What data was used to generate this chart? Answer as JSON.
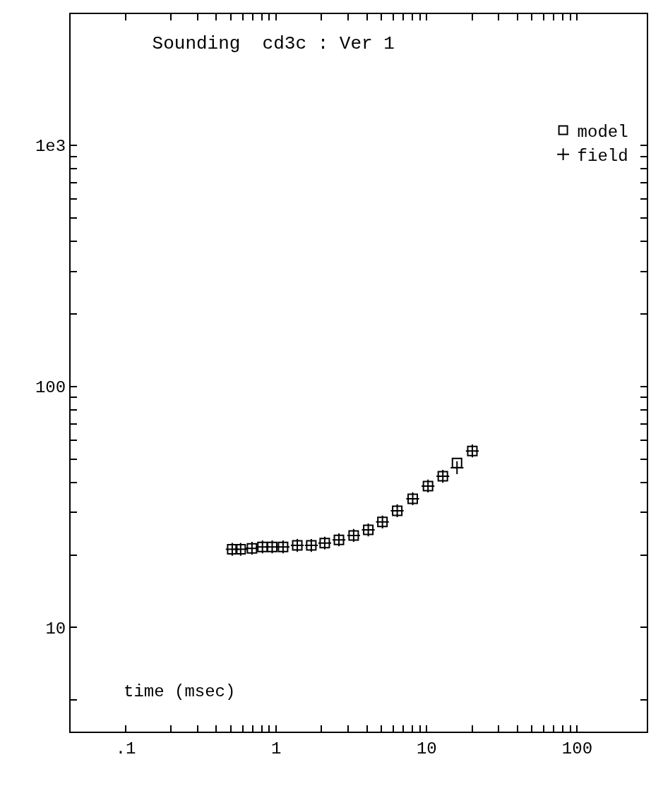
{
  "chart_data": {
    "type": "scatter",
    "title": "Sounding  cd3c : Ver 1",
    "xlabel": "time (msec)",
    "x": [
      0.51,
      0.58,
      0.69,
      0.81,
      0.94,
      1.11,
      1.38,
      1.71,
      2.1,
      2.61,
      3.27,
      4.09,
      5.08,
      6.37,
      8.07,
      10.2,
      12.8,
      15.9,
      20.1
    ],
    "series": [
      {
        "name": "model",
        "color": "#000000",
        "marker": "square",
        "values": [
          21.1,
          21.1,
          21.3,
          21.6,
          21.6,
          21.6,
          21.9,
          21.9,
          22.4,
          23.1,
          24.1,
          25.4,
          27.4,
          30.5,
          34.2,
          38.6,
          42.4,
          48.1,
          54.0
        ]
      },
      {
        "name": "field",
        "color": "#000000",
        "marker": "cross",
        "values": [
          21.1,
          21.1,
          21.3,
          21.6,
          21.6,
          21.6,
          21.9,
          21.9,
          22.4,
          23.1,
          24.1,
          25.4,
          27.4,
          30.5,
          34.2,
          38.6,
          42.4,
          46.0,
          54.0
        ]
      }
    ],
    "log": "xy",
    "xlim": [
      0.043,
      290
    ],
    "ylim": [
      3.7,
      3500
    ],
    "xticks": [
      {
        "value": 0.1,
        "label": ".1"
      },
      {
        "value": 0.2,
        "label": null
      },
      {
        "value": 0.3,
        "label": null
      },
      {
        "value": 0.4,
        "label": null
      },
      {
        "value": 0.5,
        "label": null
      },
      {
        "value": 0.6,
        "label": null
      },
      {
        "value": 0.7,
        "label": null
      },
      {
        "value": 0.8,
        "label": null
      },
      {
        "value": 0.9,
        "label": null
      },
      1,
      {
        "value": 2,
        "label": null
      },
      {
        "value": 3,
        "label": null
      },
      {
        "value": 4,
        "label": null
      },
      {
        "value": 5,
        "label": null
      },
      {
        "value": 6,
        "label": null
      },
      {
        "value": 7,
        "label": null
      },
      {
        "value": 8,
        "label": null
      },
      {
        "value": 9,
        "label": null
      },
      10,
      {
        "value": 20,
        "label": null
      },
      {
        "value": 30,
        "label": null
      },
      {
        "value": 40,
        "label": null
      },
      {
        "value": 50,
        "label": null
      },
      {
        "value": 60,
        "label": null
      },
      {
        "value": 70,
        "label": null
      },
      {
        "value": 80,
        "label": null
      },
      {
        "value": 90,
        "label": null
      },
      100
    ],
    "yticks": [
      {
        "value": 5,
        "label": null
      },
      10,
      {
        "value": 20,
        "label": null
      },
      {
        "value": 30,
        "label": null
      },
      {
        "value": 40,
        "label": null
      },
      {
        "value": 50,
        "label": null
      },
      {
        "value": 60,
        "label": null
      },
      {
        "value": 70,
        "label": null
      },
      {
        "value": 80,
        "label": null
      },
      {
        "value": 90,
        "label": null
      },
      100,
      {
        "value": 200,
        "label": null
      },
      {
        "value": 300,
        "label": null
      },
      {
        "value": 400,
        "label": null
      },
      {
        "value": 500,
        "label": null
      },
      {
        "value": 600,
        "label": null
      },
      {
        "value": 700,
        "label": null
      },
      {
        "value": 800,
        "label": null
      },
      {
        "value": 900,
        "label": null
      },
      {
        "value": 1000,
        "label": "1e3"
      }
    ],
    "legend": "top right"
  }
}
